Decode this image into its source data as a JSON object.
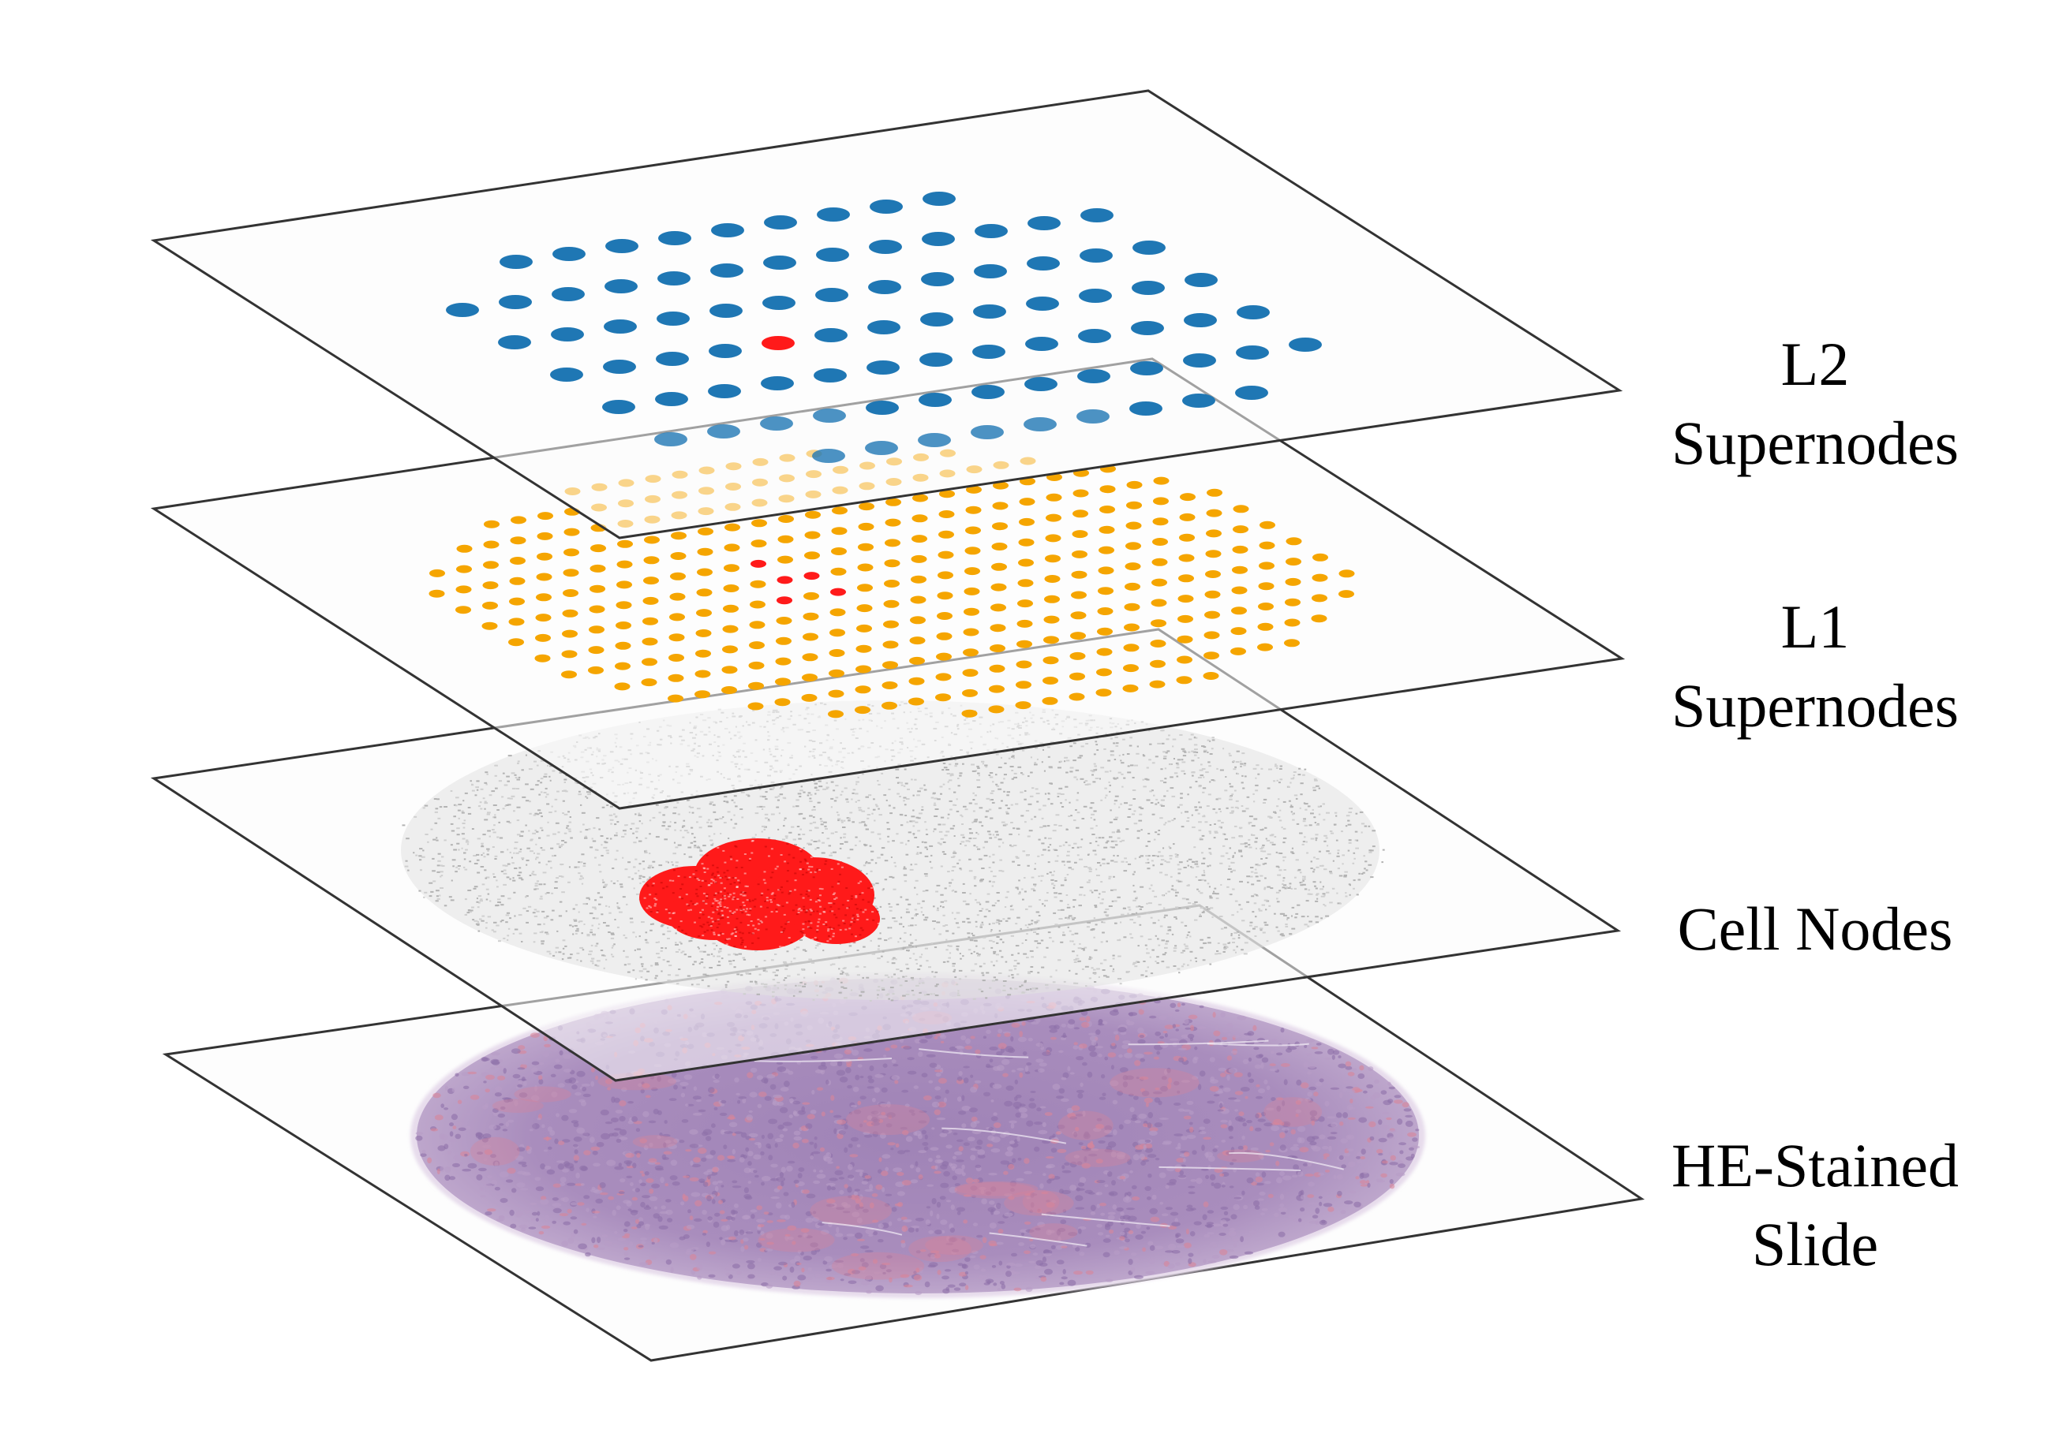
{
  "colors": {
    "l2_node": "#1f77b4",
    "l1_node": "#f5a500",
    "cell_node": "#bdbdbd",
    "highlight": "#ff1a1a",
    "he_tissue": "#a78bbb",
    "he_eosin": "#d8859a",
    "plane_edge": "#333333",
    "plane_fill": "#fbfbfb"
  },
  "layers": [
    {
      "id": "l2",
      "label_line1": "L2",
      "label_line2": "Supernodes",
      "icon": "blue-supernode-grid"
    },
    {
      "id": "l1",
      "label_line1": "L1",
      "label_line2": "Supernodes",
      "icon": "orange-supernode-grid"
    },
    {
      "id": "cells",
      "label_line1": "Cell Nodes",
      "label_line2": "",
      "icon": "grey-cell-point-cloud"
    },
    {
      "id": "he",
      "label_line1": "HE-Stained",
      "label_line2": "Slide",
      "icon": "he-tissue-core"
    }
  ]
}
